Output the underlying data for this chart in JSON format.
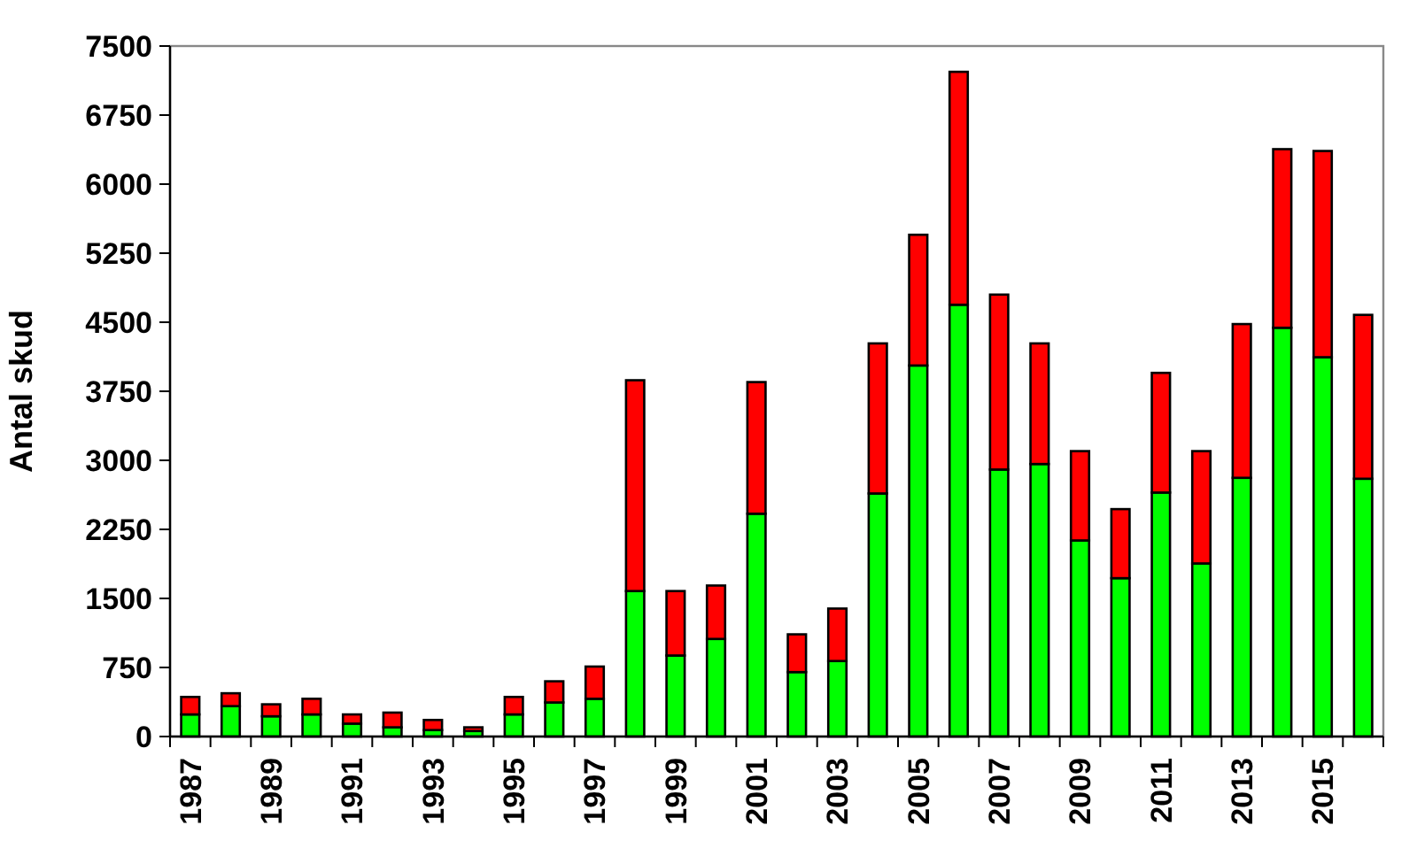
{
  "chart_data": {
    "type": "bar",
    "stacked": true,
    "ylabel": "Antal skud",
    "categories": [
      "1987",
      null,
      "1989",
      null,
      "1991",
      null,
      "1993",
      null,
      "1995",
      null,
      "1997",
      null,
      "1999",
      null,
      "2001",
      null,
      "2003",
      null,
      "2005",
      null,
      "2007",
      null,
      "2009",
      null,
      "2011",
      null,
      "2013",
      null,
      "2015",
      null
    ],
    "series": [
      {
        "color": "#00ff00",
        "values": [
          240,
          330,
          220,
          240,
          140,
          100,
          70,
          60,
          240,
          370,
          410,
          1580,
          880,
          1060,
          2420,
          700,
          820,
          2640,
          4030,
          4690,
          2900,
          2960,
          2130,
          1720,
          2650,
          1880,
          2810,
          4440,
          4120,
          2800
        ]
      },
      {
        "color": "#ff0000",
        "values": [
          190,
          140,
          130,
          170,
          100,
          160,
          110,
          40,
          190,
          230,
          350,
          2290,
          700,
          580,
          1430,
          410,
          570,
          1630,
          1420,
          2530,
          1900,
          1310,
          970,
          750,
          1300,
          1220,
          1670,
          1940,
          2240,
          1780
        ]
      }
    ],
    "ylim": [
      0,
      7500
    ],
    "yticks": [
      0,
      750,
      1500,
      2250,
      3000,
      3750,
      4500,
      5250,
      6000,
      6750,
      7500
    ]
  }
}
